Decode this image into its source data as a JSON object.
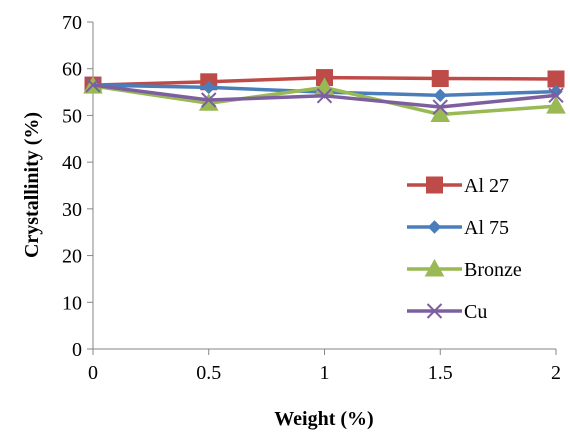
{
  "chart_data": {
    "type": "line",
    "title": "",
    "xlabel": "Weight (%)",
    "ylabel": "Crystallinity (%)",
    "x": [
      0,
      0.5,
      1,
      1.5,
      2
    ],
    "x_tick_labels": [
      "0",
      "0.5",
      "1",
      "1.5",
      "2"
    ],
    "ylim": [
      0,
      70
    ],
    "y_ticks": [
      0,
      10,
      20,
      30,
      40,
      50,
      60,
      70
    ],
    "y_tick_labels": [
      "0",
      "10",
      "20",
      "30",
      "40",
      "50",
      "60",
      "70"
    ],
    "grid": false,
    "legend_position": "right",
    "series": [
      {
        "name": "Al 27",
        "values": [
          56.5,
          57.2,
          58.1,
          57.9,
          57.8
        ],
        "color": "#be4b48",
        "marker": "square"
      },
      {
        "name": "Al 75",
        "values": [
          56.5,
          56.0,
          55.0,
          54.3,
          55.1
        ],
        "color": "#4a7ebb",
        "marker": "diamond"
      },
      {
        "name": "Bronze",
        "values": [
          56.3,
          52.6,
          56.0,
          50.2,
          52.0
        ],
        "color": "#98b954",
        "marker": "triangle"
      },
      {
        "name": "Cu",
        "values": [
          56.5,
          53.3,
          54.2,
          51.8,
          54.3
        ],
        "color": "#7d5fa0",
        "marker": "x"
      }
    ]
  }
}
